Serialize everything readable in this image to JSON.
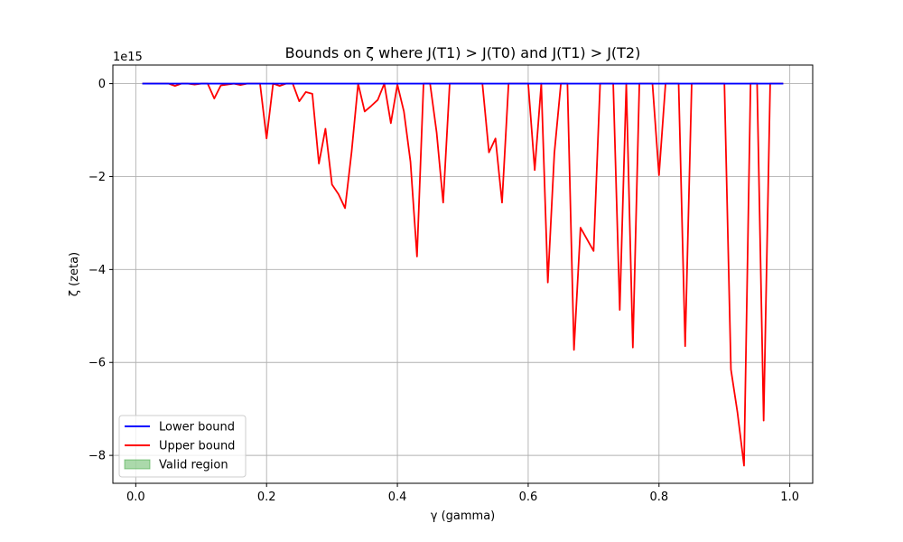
{
  "chart_data": {
    "type": "line",
    "title": "Bounds on ζ where J(T1) > J(T0) and J(T1) > J(T2)",
    "xlabel": "γ (gamma)",
    "ylabel": "ζ (zeta)",
    "y_offset_label": "1e15",
    "y_scale": 1000000000000000.0,
    "xlim": [
      -0.035,
      1.035
    ],
    "ylim": [
      -8.6,
      0.4
    ],
    "x_ticks": [
      0.0,
      0.2,
      0.4,
      0.6,
      0.8,
      1.0
    ],
    "x_tick_labels": [
      "0.0",
      "0.2",
      "0.4",
      "0.6",
      "0.8",
      "1.0"
    ],
    "y_ticks": [
      0,
      -2,
      -4,
      -6,
      -8
    ],
    "y_tick_labels": [
      "0",
      "−2",
      "−4",
      "−6",
      "−8"
    ],
    "grid": true,
    "legend_position": "bottom-left",
    "colors": {
      "lower": "#0000ff",
      "upper": "#ff0000",
      "region": "#2ca02c"
    },
    "series": [
      {
        "name": "Lower bound",
        "color": "#0000ff",
        "x": [
          0.01,
          0.99
        ],
        "y": [
          0,
          0
        ]
      },
      {
        "name": "Upper bound",
        "color": "#ff0000",
        "x": [
          0.01,
          0.02,
          0.03,
          0.04,
          0.05,
          0.06,
          0.07,
          0.08,
          0.09,
          0.1,
          0.11,
          0.12,
          0.13,
          0.14,
          0.15,
          0.16,
          0.17,
          0.18,
          0.19,
          0.2,
          0.21,
          0.22,
          0.23,
          0.24,
          0.25,
          0.26,
          0.27,
          0.28,
          0.29,
          0.3,
          0.31,
          0.32,
          0.33,
          0.34,
          0.35,
          0.36,
          0.37,
          0.38,
          0.39,
          0.4,
          0.41,
          0.42,
          0.43,
          0.44,
          0.45,
          0.46,
          0.47,
          0.48,
          0.49,
          0.5,
          0.51,
          0.52,
          0.53,
          0.54,
          0.55,
          0.56,
          0.57,
          0.58,
          0.59,
          0.6,
          0.61,
          0.62,
          0.63,
          0.64,
          0.65,
          0.66,
          0.67,
          0.68,
          0.69,
          0.7,
          0.71,
          0.72,
          0.73,
          0.74,
          0.75,
          0.76,
          0.77,
          0.78,
          0.79,
          0.8,
          0.81,
          0.82,
          0.83,
          0.84,
          0.85,
          0.86,
          0.87,
          0.88,
          0.89,
          0.9,
          0.91,
          0.92,
          0.93,
          0.94,
          0.95,
          0.96,
          0.97,
          0.98,
          0.99
        ],
        "y": [
          0,
          0,
          0,
          0,
          0,
          -0.05,
          0,
          0,
          -0.02,
          0,
          0,
          -0.32,
          -0.04,
          -0.02,
          0,
          -0.03,
          0,
          0,
          0,
          -1.18,
          0,
          -0.05,
          0,
          0,
          -0.38,
          -0.18,
          -0.22,
          -1.72,
          -0.97,
          -2.17,
          -2.38,
          -2.68,
          -1.47,
          0,
          -0.6,
          -0.48,
          -0.35,
          0,
          -0.85,
          -0.02,
          -0.6,
          -1.68,
          -3.72,
          0,
          0,
          -1.05,
          -2.56,
          0,
          0,
          0,
          0,
          0,
          0,
          -1.48,
          -1.18,
          -2.56,
          0,
          0,
          0,
          0,
          -1.86,
          0,
          -4.28,
          -1.5,
          0,
          0,
          -5.73,
          -3.1,
          -3.35,
          -3.6,
          0,
          0,
          0,
          -4.87,
          0,
          -5.68,
          0,
          0,
          0,
          -1.97,
          0,
          0,
          0,
          -5.65,
          0,
          0,
          0,
          0,
          0,
          0,
          -6.15,
          -7.08,
          -8.22,
          0,
          0,
          -7.25,
          0,
          0,
          0
        ]
      }
    ],
    "legend": [
      {
        "label": "Lower bound",
        "kind": "line",
        "color": "#0000ff"
      },
      {
        "label": "Upper bound",
        "kind": "line",
        "color": "#ff0000"
      },
      {
        "label": "Valid region",
        "kind": "patch",
        "color": "#2ca02c"
      }
    ]
  }
}
